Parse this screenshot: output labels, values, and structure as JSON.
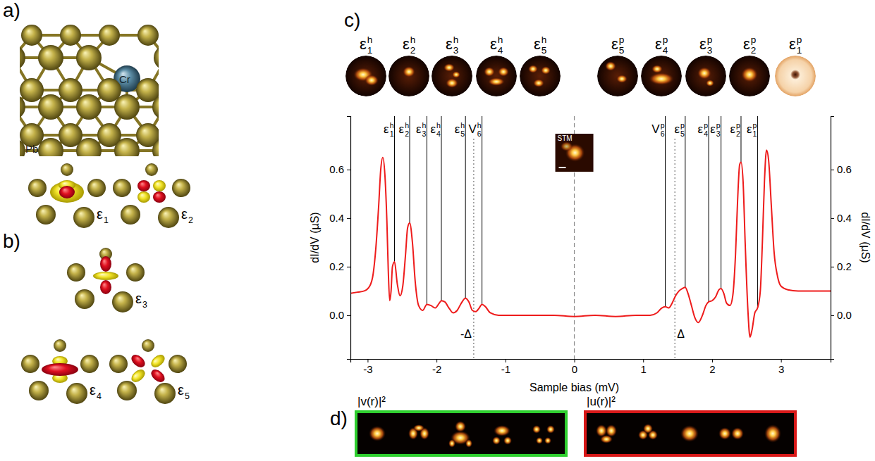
{
  "chart_data": {
    "type": "line",
    "x_label": "Sample bias (mV)",
    "y_label": "dI/dV (µS)",
    "y2_label": "dI/dV (µS)",
    "color": "#ee1c1c",
    "x": [
      -3.25,
      -3.15,
      -3.05,
      -2.97,
      -2.92,
      -2.88,
      -2.84,
      -2.81,
      -2.78,
      -2.75,
      -2.72,
      -2.7,
      -2.68,
      -2.66,
      -2.64,
      -2.61,
      -2.57,
      -2.53,
      -2.49,
      -2.45,
      -2.42,
      -2.39,
      -2.35,
      -2.31,
      -2.26,
      -2.2,
      -2.14,
      -2.08,
      -2.02,
      -1.96,
      -1.93,
      -1.88,
      -1.82,
      -1.76,
      -1.7,
      -1.64,
      -1.58,
      -1.53,
      -1.48,
      -1.43,
      -1.38,
      -1.34,
      -1.29,
      -1.22,
      -1.1,
      -0.9,
      -0.6,
      -0.3,
      0,
      0.3,
      0.6,
      0.9,
      1.1,
      1.2,
      1.27,
      1.32,
      1.37,
      1.42,
      1.47,
      1.52,
      1.57,
      1.61,
      1.65,
      1.7,
      1.75,
      1.8,
      1.86,
      1.91,
      1.95,
      2,
      2.05,
      2.1,
      2.13,
      2.17,
      2.21,
      2.26,
      2.3,
      2.34,
      2.37,
      2.4,
      2.42,
      2.45,
      2.48,
      2.52,
      2.55,
      2.58,
      2.62,
      2.66,
      2.7,
      2.73,
      2.76,
      2.79,
      2.82,
      2.86,
      2.9,
      2.95,
      3,
      3.1,
      3.25,
      3.45,
      3.72
    ],
    "values": [
      0.09,
      0.095,
      0.1,
      0.12,
      0.17,
      0.28,
      0.45,
      0.6,
      0.65,
      0.58,
      0.38,
      0.18,
      0.06,
      0.1,
      0.2,
      0.22,
      0.13,
      0.08,
      0.12,
      0.25,
      0.36,
      0.38,
      0.3,
      0.14,
      0.04,
      0.02,
      0.045,
      0.04,
      0.03,
      0.05,
      0.06,
      0.055,
      0.03,
      0.01,
      0.02,
      0.05,
      0.07,
      0.055,
      0.02,
      0.015,
      0.03,
      0.045,
      0.035,
      0.01,
      0,
      0,
      0,
      0,
      -0.005,
      0,
      -0.005,
      0,
      0,
      0.01,
      0.03,
      0.035,
      0.03,
      0.05,
      0.08,
      0.1,
      0.11,
      0.115,
      0.09,
      0.04,
      -0.01,
      -0.03,
      0,
      0.04,
      0.055,
      0.06,
      0.075,
      0.105,
      0.11,
      0.09,
      0.05,
      0.04,
      0.08,
      0.25,
      0.47,
      0.62,
      0.63,
      0.55,
      0.3,
      0.02,
      -0.09,
      -0.06,
      0.01,
      0.03,
      0.1,
      0.3,
      0.55,
      0.68,
      0.64,
      0.45,
      0.26,
      0.16,
      0.12,
      0.105,
      0.1,
      0.1,
      0.1
    ],
    "xlim": [
      -3.25,
      3.72
    ],
    "xticks": [
      -3,
      -2,
      -1,
      0,
      1,
      2,
      3
    ],
    "ylim": [
      -0.18,
      0.82
    ],
    "yticks": [
      {
        "value": 0,
        "label": "0.0"
      },
      0.2,
      0.4,
      0.6
    ],
    "y2lim": [
      -0.18,
      0.82
    ],
    "y2ticks": [
      {
        "value": 0,
        "label": "0.0"
      },
      0.2,
      0.4,
      0.6
    ],
    "annotations": [
      {
        "symbol": "ε",
        "sup": "h",
        "sub": "1",
        "x": -2.61,
        "y": 0.22
      },
      {
        "symbol": "ε",
        "sup": "h",
        "sub": "2",
        "x": -2.39,
        "y": 0.38
      },
      {
        "symbol": "ε",
        "sup": "h",
        "sub": "3",
        "x": -2.14,
        "y": 0.045
      },
      {
        "symbol": "ε",
        "sup": "h",
        "sub": "4",
        "x": -1.93,
        "y": 0.06
      },
      {
        "symbol": "ε",
        "sup": "h",
        "sub": "5",
        "x": -1.58,
        "y": 0.07
      },
      {
        "symbol": "V",
        "sup": "h",
        "sub": "6",
        "x": -1.34,
        "y": 0.045
      },
      {
        "symbol": "V",
        "sup": "p",
        "sub": "6",
        "x": 1.32,
        "y": 0.035
      },
      {
        "symbol": "ε",
        "sup": "p",
        "sub": "5",
        "x": 1.61,
        "y": 0.115
      },
      {
        "symbol": "ε",
        "sup": "p",
        "sub": "4",
        "x": 1.95,
        "y": 0.055
      },
      {
        "symbol": "ε",
        "sup": "p",
        "sub": "3",
        "x": 2.13,
        "y": 0.11
      },
      {
        "symbol": "ε",
        "sup": "p",
        "sub": "2",
        "x": 2.42,
        "y": 0.63
      },
      {
        "symbol": "ε",
        "sup": "p",
        "sub": "1",
        "x": 2.66,
        "y": 0.03
      }
    ],
    "gap_lines": [
      {
        "label": "-Δ",
        "x": -1.46
      },
      {
        "label": "Δ",
        "x": 1.46
      }
    ],
    "zero_line": 0,
    "inset_label": "STM"
  },
  "panels": {
    "a": {
      "letter": "a)",
      "atom_labels": [
        "Cr",
        "Pb"
      ]
    },
    "b": {
      "letter": "b)",
      "orbitals": [
        {
          "symbol": "ε",
          "sub": "1"
        },
        {
          "symbol": "ε",
          "sub": "2"
        },
        {
          "symbol": "ε",
          "sub": "3"
        },
        {
          "symbol": "ε",
          "sub": "4"
        },
        {
          "symbol": "ε",
          "sub": "5"
        }
      ]
    },
    "c": {
      "letter": "c)",
      "maps": [
        {
          "symbol": "ε",
          "sup": "h",
          "sub": "1"
        },
        {
          "symbol": "ε",
          "sup": "h",
          "sub": "2"
        },
        {
          "symbol": "ε",
          "sup": "h",
          "sub": "3"
        },
        {
          "symbol": "ε",
          "sup": "h",
          "sub": "4"
        },
        {
          "symbol": "ε",
          "sup": "h",
          "sub": "5"
        },
        {
          "symbol": "ε",
          "sup": "p",
          "sub": "5"
        },
        {
          "symbol": "ε",
          "sup": "p",
          "sub": "4"
        },
        {
          "symbol": "ε",
          "sup": "p",
          "sub": "3"
        },
        {
          "symbol": "ε",
          "sup": "p",
          "sub": "2"
        },
        {
          "symbol": "ε",
          "sup": "p",
          "sub": "1"
        }
      ]
    },
    "d": {
      "letter": "d)",
      "boxes": [
        {
          "label": "|v(r)|²",
          "color": "#2fcf2f"
        },
        {
          "label": "|u(r)|²",
          "color": "#d81818"
        }
      ]
    }
  }
}
